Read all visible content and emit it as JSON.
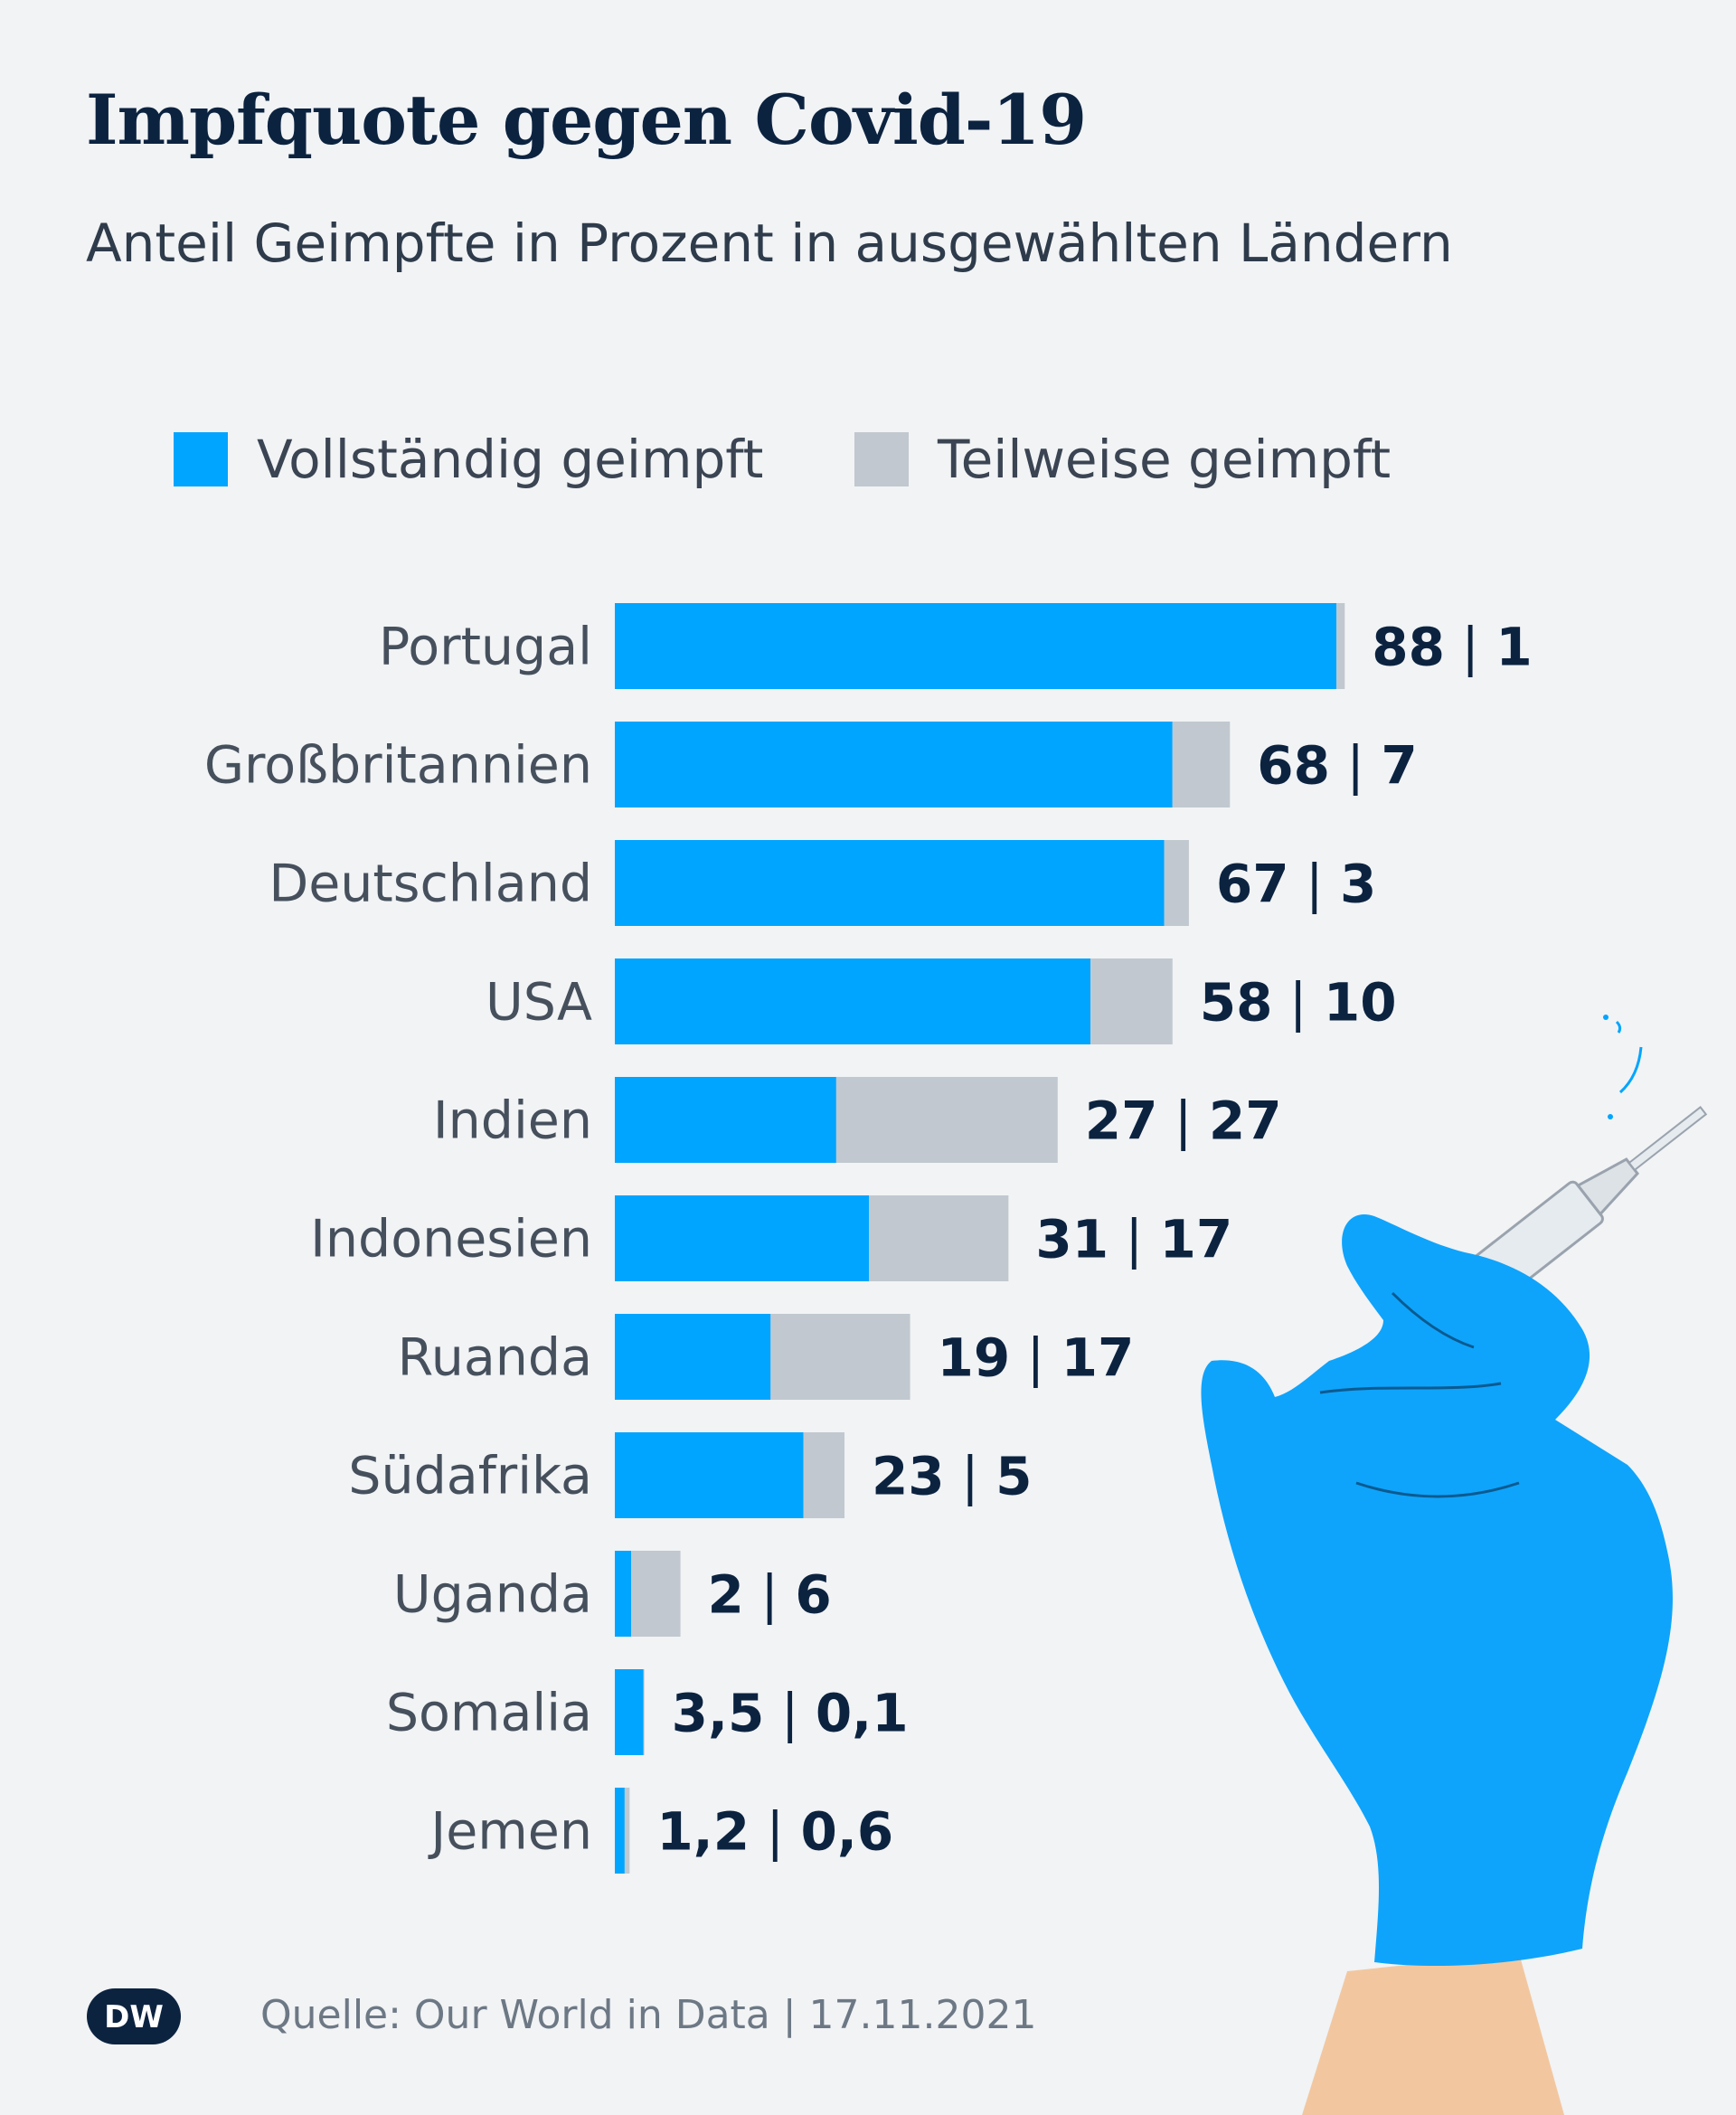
{
  "title": "Impfquote gegen Covid-19",
  "subtitle": "Anteil Geimpfte in Prozent in ausgewählten Ländern",
  "legend": {
    "full_label": "Vollständig geimpft",
    "partial_label": "Teilweise geimpft"
  },
  "colors": {
    "full": "#00a5ff",
    "partial": "#c1c8cf",
    "text_dark": "#0c2340",
    "background": "#f1f3f5",
    "glove": "#0ea4fb",
    "skin": "#f2c7a0"
  },
  "chart_data": {
    "type": "bar",
    "orientation": "horizontal",
    "stacked": true,
    "title": "Impfquote gegen Covid-19",
    "subtitle": "Anteil Geimpfte in Prozent in ausgewählten Ländern",
    "xlim": [
      0,
      100
    ],
    "categories": [
      "Portugal",
      "Großbritannien",
      "Deutschland",
      "USA",
      "Indien",
      "Indonesien",
      "Ruanda",
      "Südafrika",
      "Uganda",
      "Somalia",
      "Jemen"
    ],
    "series": [
      {
        "name": "Vollständig geimpft",
        "values": [
          88,
          68,
          67,
          58,
          27,
          31,
          19,
          23,
          2,
          3.5,
          1.2
        ]
      },
      {
        "name": "Teilweise geimpft",
        "values": [
          1,
          7,
          3,
          10,
          27,
          17,
          17,
          5,
          6,
          0.1,
          0.6
        ]
      }
    ],
    "value_labels_full": [
      "88",
      "68",
      "67",
      "58",
      "27",
      "31",
      "19",
      "23",
      "2",
      "3,5",
      "1,2"
    ],
    "value_labels_partial": [
      "1",
      "7",
      "3",
      "10",
      "27",
      "17",
      "17",
      "5",
      "6",
      "0,1",
      "0,6"
    ],
    "separator": "|"
  },
  "logo_text": "DW",
  "source": "Quelle: Our World in Data | 17.11.2021"
}
